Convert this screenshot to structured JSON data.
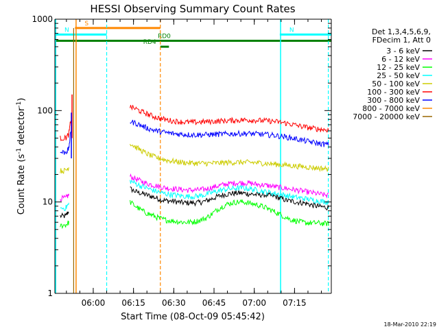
{
  "chart_data": {
    "type": "line",
    "title": "HESSI Observing Summary Count Rates",
    "xlabel": "Start Time (08-Oct-09 05:45:42)",
    "ylabel_main": "Count Rate (s",
    "ylabel_sup1": "-1",
    "ylabel_mid": " detector",
    "ylabel_sup2": "-1",
    "ylabel_end": ")",
    "y_scale": "log",
    "ylim": [
      1,
      1000
    ],
    "x_unit": "minutes since 05:45:42",
    "xlim": [
      0,
      103
    ],
    "x_ticks": [
      {
        "label": "06:00",
        "value": 14.3
      },
      {
        "label": "06:15",
        "value": 29.3
      },
      {
        "label": "06:30",
        "value": 44.3
      },
      {
        "label": "06:45",
        "value": 59.3
      },
      {
        "label": "07:00",
        "value": 74.3
      },
      {
        "label": "07:15",
        "value": 89.3
      }
    ],
    "y_ticks": [
      {
        "label": "1",
        "value": 1
      },
      {
        "label": "10",
        "value": 10
      },
      {
        "label": "100",
        "value": 100
      },
      {
        "label": "1000",
        "value": 1000
      }
    ],
    "legend_header": [
      "Det 1,3,4,5,6,9,",
      "FDecim 1, Att 0"
    ],
    "legend_position": "right",
    "x": [
      0,
      2,
      4,
      5.2,
      6,
      6.6,
      7,
      8,
      10,
      12,
      14,
      16,
      18,
      20,
      22,
      24,
      26,
      27.3,
      28,
      30,
      32,
      34,
      36,
      38,
      40,
      42,
      44,
      46,
      48,
      50,
      52,
      54,
      56,
      58,
      60,
      62,
      64,
      66,
      68,
      70,
      72,
      74,
      76,
      78,
      80,
      82,
      84,
      86,
      88,
      90,
      92,
      94,
      96,
      98,
      100,
      102
    ],
    "series": [
      {
        "name": "3 - 6 keV",
        "color": "#000000",
        "values": [
          null,
          7,
          7,
          8,
          null,
          null,
          null,
          null,
          null,
          null,
          null,
          null,
          null,
          null,
          null,
          null,
          null,
          null,
          14,
          13,
          12.5,
          12,
          11.5,
          11,
          10.5,
          10.3,
          10.2,
          10,
          9.8,
          9.8,
          9.8,
          9.9,
          10.2,
          10.7,
          11.3,
          11.8,
          12.2,
          12.4,
          12.5,
          12.5,
          12.3,
          12.1,
          12,
          12,
          11.8,
          11.5,
          11,
          10.5,
          10.2,
          10,
          9.8,
          9.6,
          9.2,
          9,
          8.8,
          8.7
        ]
      },
      {
        "name": "6 - 12 keV",
        "color": "#ff00ff",
        "values": [
          null,
          11,
          11,
          12,
          null,
          null,
          null,
          null,
          null,
          null,
          null,
          null,
          null,
          null,
          null,
          null,
          null,
          null,
          19,
          18,
          17,
          16,
          15.5,
          15,
          14.5,
          14.2,
          14,
          13.8,
          13.6,
          13.5,
          13.5,
          13.6,
          13.8,
          14.3,
          14.8,
          15.3,
          15.7,
          16,
          16.2,
          16.2,
          16.1,
          15.8,
          15.5,
          15.3,
          15,
          14.7,
          14.4,
          14.1,
          13.8,
          13.5,
          13.2,
          12.9,
          12.6,
          12.3,
          12,
          11.8
        ]
      },
      {
        "name": "12 - 25 keV",
        "color": "#00ff00",
        "values": [
          null,
          5.5,
          5.6,
          6,
          null,
          null,
          null,
          null,
          null,
          null,
          null,
          null,
          null,
          null,
          null,
          null,
          null,
          null,
          10,
          9,
          8.2,
          7.6,
          7.2,
          6.8,
          6.5,
          6.3,
          6.2,
          6.1,
          6,
          6,
          6.1,
          6.3,
          6.6,
          7.2,
          8,
          8.8,
          9.4,
          9.8,
          10,
          10,
          9.8,
          9.5,
          9.2,
          8.8,
          8.3,
          7.8,
          7.3,
          6.8,
          6.4,
          6.2,
          6,
          5.9,
          5.9,
          5.9,
          5.8,
          5.8
        ]
      },
      {
        "name": "25 - 50 keV",
        "color": "#00ffff",
        "values": [
          null,
          8.5,
          8.6,
          9.5,
          null,
          null,
          null,
          null,
          null,
          null,
          null,
          null,
          null,
          null,
          null,
          null,
          null,
          null,
          17,
          16,
          15,
          14.3,
          13.6,
          13,
          12.5,
          12.2,
          12,
          11.8,
          11.6,
          11.5,
          11.5,
          11.7,
          12,
          12.5,
          13,
          13.5,
          13.8,
          14,
          14.2,
          14.2,
          14,
          13.7,
          13.4,
          13,
          12.7,
          12.4,
          12.1,
          11.8,
          11.5,
          11.2,
          11,
          10.8,
          10.5,
          10.3,
          10.1,
          10
        ]
      },
      {
        "name": "50 - 100 keV",
        "color": "#cccc00",
        "values": [
          null,
          22,
          22,
          24,
          null,
          null,
          null,
          null,
          null,
          null,
          null,
          null,
          null,
          null,
          null,
          null,
          null,
          null,
          44,
          40,
          37,
          34,
          32,
          30.5,
          29.5,
          28.5,
          28,
          27.5,
          27,
          26.8,
          26.6,
          26.5,
          26.5,
          26.5,
          26.6,
          26.8,
          27,
          27.1,
          27.2,
          27.2,
          27.1,
          27,
          26.8,
          26.5,
          26.2,
          25.9,
          25.6,
          25.3,
          25,
          24.7,
          24.4,
          24.1,
          23.8,
          23.5,
          23.3,
          23
        ]
      },
      {
        "name": "100 - 300 keV",
        "color": "#ff0000",
        "values": [
          null,
          50,
          50,
          55,
          80,
          null,
          null,
          null,
          null,
          null,
          null,
          null,
          null,
          null,
          null,
          null,
          null,
          null,
          110,
          105,
          98,
          93,
          88,
          84,
          81,
          79,
          77,
          76,
          75,
          74.5,
          74.5,
          75,
          75.5,
          76,
          76.5,
          77,
          77.5,
          78,
          78.5,
          79,
          79,
          78.5,
          78,
          77.5,
          77,
          76,
          74.5,
          73,
          71,
          69,
          67,
          65.5,
          64,
          63,
          62,
          61.5
        ]
      },
      {
        "name": "300 - 800 keV",
        "color": "#0000ff",
        "values": [
          null,
          35,
          35,
          38,
          60,
          null,
          null,
          null,
          null,
          null,
          null,
          null,
          null,
          null,
          null,
          null,
          null,
          null,
          76,
          73,
          69,
          65,
          62,
          60,
          58.5,
          57,
          56,
          55.5,
          55,
          54.5,
          54.3,
          54.3,
          54.5,
          54.8,
          55,
          55.2,
          55.5,
          55.7,
          55.9,
          56,
          56,
          55.7,
          55.3,
          54.8,
          54.2,
          53.5,
          52.5,
          51.5,
          50.2,
          49,
          47.5,
          46.2,
          45,
          44,
          43,
          42.5
        ]
      },
      {
        "name": "800 - 7000 keV",
        "color": "#ff8800",
        "values": [
          null,
          null,
          null,
          null,
          null,
          null,
          null,
          null,
          null,
          null,
          null,
          null,
          null,
          null,
          null,
          null,
          null,
          null,
          null,
          null,
          null,
          null,
          null,
          null,
          null,
          null,
          null,
          null,
          null,
          null,
          null,
          null,
          null,
          null,
          null,
          null,
          null,
          null,
          null,
          null,
          null,
          null,
          null,
          null,
          null,
          null,
          null,
          null,
          null,
          null,
          null,
          null,
          null,
          null,
          null,
          null
        ]
      },
      {
        "name": "7000 - 20000 keV",
        "color": "#996600",
        "values": [
          null,
          null,
          null,
          null,
          null,
          null,
          null,
          null,
          null,
          null,
          null,
          null,
          null,
          null,
          null,
          null,
          null,
          null,
          null,
          null,
          null,
          null,
          null,
          null,
          null,
          null,
          null,
          null,
          null,
          null,
          null,
          null,
          null,
          null,
          null,
          null,
          null,
          null,
          null,
          null,
          null,
          null,
          null,
          null,
          null,
          null,
          null,
          null,
          null,
          null,
          null,
          null,
          null,
          null,
          null,
          null
        ]
      }
    ],
    "flag_bars": [
      {
        "label": "S",
        "color": "#ff8800",
        "x0": 7.5,
        "x1": 39.3,
        "y": 800
      },
      {
        "label": "N",
        "color": "#00ffff",
        "x0": 0,
        "x1": 19.3,
        "y": 680
      },
      {
        "label": "N",
        "color": "#00ffff",
        "x0": 83.8,
        "x1": 103,
        "y": 680
      },
      {
        "label": "RD0",
        "color": "#008000",
        "x0": 0,
        "x1": 103,
        "y": 580
      },
      {
        "label": "RD4",
        "color": "#008000",
        "x0": 39.3,
        "x1": 42.5,
        "y": 500
      }
    ],
    "solid_vlines": [
      {
        "color": "#00ffff",
        "x": 0.3
      },
      {
        "color": "#00ffff",
        "x": 84.1
      },
      {
        "color": "#ff8800",
        "x": 7.9
      }
    ],
    "dashed_vlines": [
      {
        "color": "#00ffff",
        "x": 19.3
      },
      {
        "color": "#00ffff",
        "x": 101.9
      },
      {
        "color": "#ff8800",
        "x": 39.3
      }
    ],
    "footer": "18-Mar-2010 22:19"
  }
}
